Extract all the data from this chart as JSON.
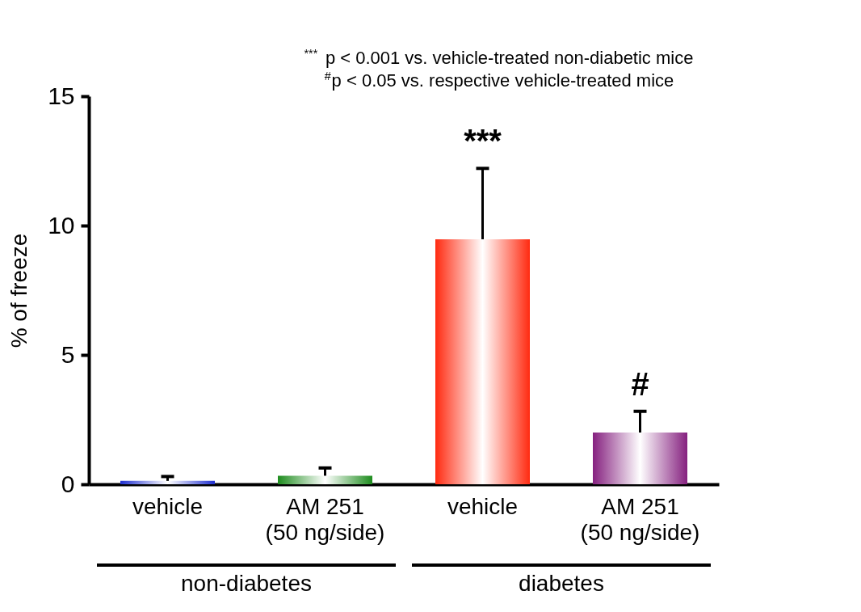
{
  "chart_data": {
    "type": "bar",
    "ylabel": "% of freeze",
    "categories": [
      "vehicle",
      "AM 251\n(50 ng/side)",
      "vehicle",
      "AM 251\n(50 ng/side)"
    ],
    "values": [
      0.13,
      0.33,
      9.47,
      2.0
    ],
    "errors": [
      0.17,
      0.3,
      2.74,
      0.82
    ],
    "colors": [
      "#1f2fd0",
      "#1e8c1e",
      "#ff2a10",
      "#85207f"
    ],
    "value_labels": [
      null,
      null,
      "***",
      "#"
    ],
    "ylim": [
      0,
      15
    ],
    "yticks": [
      0,
      5,
      10,
      15
    ],
    "annotations": [
      "$^{***}$p < 0.001 vs. vehicle-treated non-diabetic mice",
      "$^{#}$p < 0.05 vs. respective vehicle-treated mice",
      "non-diabetes",
      "diabetes"
    ],
    "grid": false
  }
}
